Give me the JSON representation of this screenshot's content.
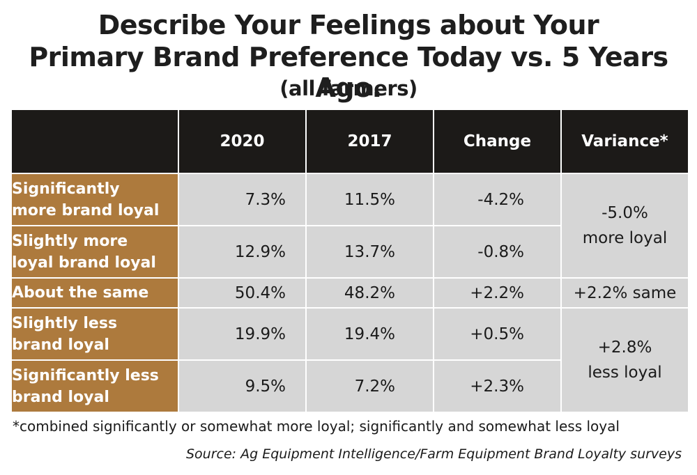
{
  "chart_data": {
    "type": "table",
    "title_line1": "Describe Your Feelings about Your",
    "title_line2": "Primary Brand Preference Today vs. 5 Years Ago.",
    "subtitle": "(all farmers)",
    "columns": [
      "",
      "2020",
      "2017",
      "Change",
      "Variance*"
    ],
    "rows": [
      {
        "label_line1": "Significantly",
        "label_line2": "more brand loyal",
        "v2020": "7.3%",
        "v2017": "11.5%",
        "change": "-4.2%"
      },
      {
        "label_line1": "Slightly more",
        "label_line2": "loyal brand loyal",
        "v2020": "12.9%",
        "v2017": "13.7%",
        "change": "-0.8%"
      },
      {
        "label_line1": "About the same",
        "label_line2": "",
        "v2020": "50.4%",
        "v2017": "48.2%",
        "change": "+2.2%"
      },
      {
        "label_line1": "Slightly less",
        "label_line2": "brand loyal",
        "v2020": "19.9%",
        "v2017": "19.4%",
        "change": "+0.5%"
      },
      {
        "label_line1": "Significantly less",
        "label_line2": "brand loyal",
        "v2020": "9.5%",
        "v2017": "7.2%",
        "change": "+2.3%"
      }
    ],
    "variance": [
      {
        "line1": "-5.0%",
        "line2": "more loyal"
      },
      {
        "line1": "+2.2% same",
        "line2": ""
      },
      {
        "line1": "+2.8%",
        "line2": "less loyal"
      }
    ],
    "footnote": "*combined significantly or somewhat more loyal; significantly and somewhat less loyal",
    "source": "Source: Ag Equipment Intelligence/Farm Equipment Brand Loyalty surveys"
  },
  "colors": {
    "header_bg": "#1c1a18",
    "label_bg": "#ad7a3d",
    "cell_bg": "#d6d6d6"
  }
}
